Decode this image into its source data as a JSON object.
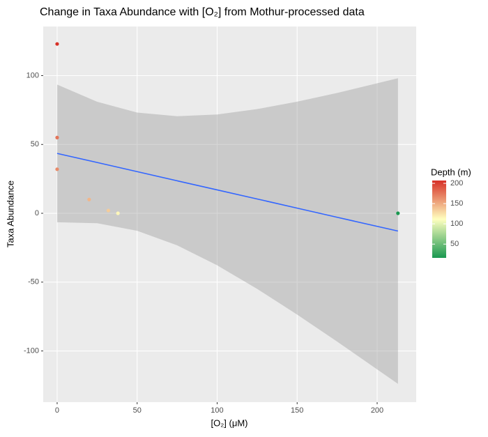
{
  "chart_data": {
    "type": "scatter",
    "title": "Change in Taxa Abundance with [O₂] from Mothur-processed data",
    "x_label": "[O₂] (μM)",
    "y_label": "Taxa Abundance",
    "xlim": [
      -8.7,
      224.4
    ],
    "ylim": [
      -137.2,
      135.7
    ],
    "xticks": [
      0,
      50,
      100,
      150,
      200
    ],
    "yticks": [
      -100,
      -50,
      0,
      50,
      100
    ],
    "grid": true,
    "series": [
      {
        "x": [
          0,
          0,
          0,
          20,
          32,
          38,
          213
        ],
        "values": [
          123,
          55,
          32,
          10,
          2,
          0,
          0
        ],
        "depth": [
          207,
          175,
          165,
          145,
          135,
          115,
          16
        ]
      }
    ],
    "fit": {
      "color": "#3366ff",
      "band_color": "#999999",
      "x": [
        0,
        25,
        50,
        75,
        100,
        125,
        150,
        175,
        213
      ],
      "values": [
        43.5,
        36.9,
        30.25,
        23.6,
        17.0,
        10.4,
        3.75,
        -2.9,
        -12.9
      ],
      "upper": [
        93.5,
        81.0,
        73.2,
        70.5,
        71.8,
        75.7,
        81.1,
        87.4,
        98.1
      ],
      "lower": [
        -6.5,
        -7.2,
        -12.7,
        -23.3,
        -37.8,
        -54.9,
        -73.6,
        -93.2,
        -123.9
      ]
    },
    "legend": {
      "title": "Depth (m)",
      "position": "right",
      "colors": [
        "#1a9850",
        "#ffffbf",
        "#d73027"
      ],
      "clim": [
        16,
        207
      ],
      "ticks": [
        50,
        100,
        150,
        200
      ]
    }
  }
}
